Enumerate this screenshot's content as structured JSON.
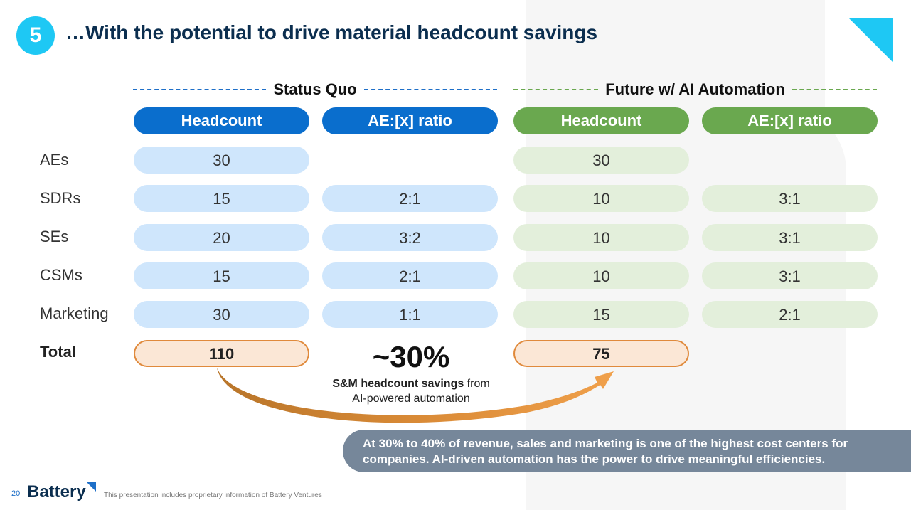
{
  "header": {
    "step_number": "5",
    "title": "…With the potential to drive material headcount savings"
  },
  "groups": {
    "status_quo": "Status Quo",
    "future": "Future w/ AI Automation"
  },
  "columns": [
    "Headcount",
    "AE:[x] ratio",
    "Headcount",
    "AE:[x] ratio"
  ],
  "rows": [
    {
      "label": "AEs",
      "sq_headcount": "30",
      "sq_ratio": "",
      "fut_headcount": "30",
      "fut_ratio": ""
    },
    {
      "label": "SDRs",
      "sq_headcount": "15",
      "sq_ratio": "2:1",
      "fut_headcount": "10",
      "fut_ratio": "3:1"
    },
    {
      "label": "SEs",
      "sq_headcount": "20",
      "sq_ratio": "3:2",
      "fut_headcount": "10",
      "fut_ratio": "3:1"
    },
    {
      "label": "CSMs",
      "sq_headcount": "15",
      "sq_ratio": "2:1",
      "fut_headcount": "10",
      "fut_ratio": "3:1"
    },
    {
      "label": "Marketing",
      "sq_headcount": "30",
      "sq_ratio": "1:1",
      "fut_headcount": "15",
      "fut_ratio": "2:1"
    }
  ],
  "total": {
    "label": "Total",
    "sq_headcount": "110",
    "fut_headcount": "75"
  },
  "savings": {
    "value": "~30%",
    "bold_text": "S&M headcount savings",
    "rest_text": " from",
    "line2": "AI-powered automation"
  },
  "callout": {
    "line1": "At 30% to 40% of revenue, sales and marketing is one of the highest cost centers for",
    "line2": "companies. AI-driven automation has the power to drive meaningful efficiencies."
  },
  "footer": {
    "page_number": "20",
    "logo_text": "Battery",
    "note": "This presentation includes proprietary information of Battery Ventures"
  },
  "colors": {
    "accent_cyan": "#1ec8f4",
    "status_blue": "#0a6ecd",
    "future_green": "#6aa84f",
    "total_orange": "#e08a3c",
    "callout_gray": "#76879a"
  }
}
